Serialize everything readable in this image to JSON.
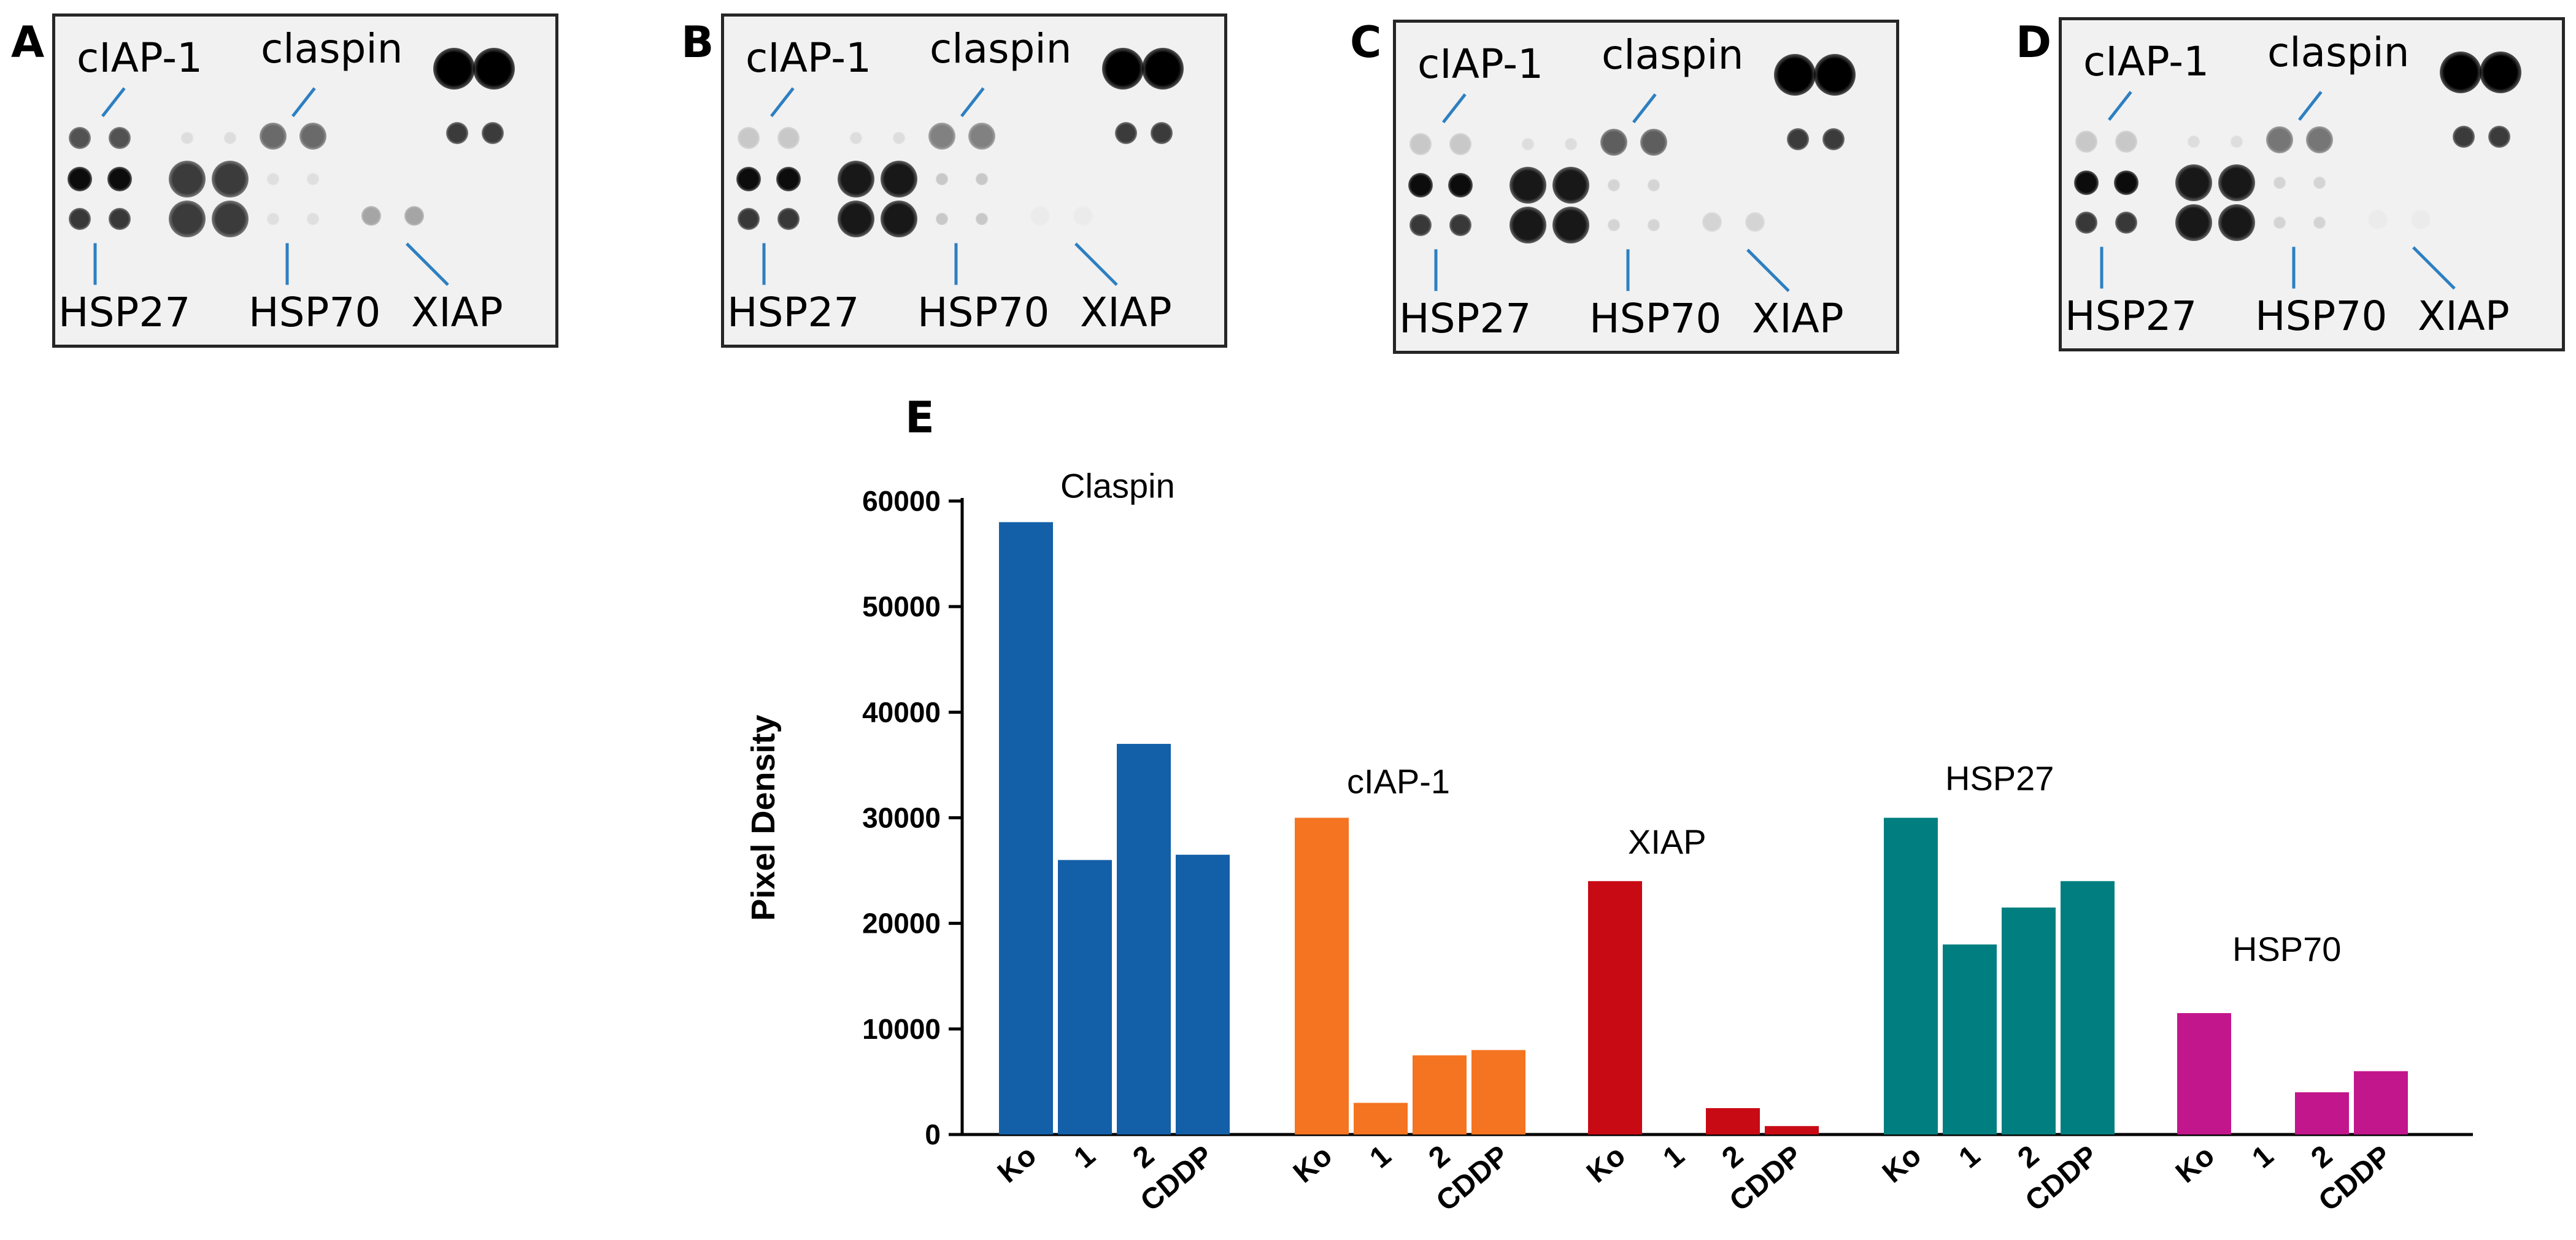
{
  "panels": [
    {
      "letter": "A",
      "labels": {
        "ciap1": "cIAP-1",
        "claspin": "claspin",
        "hsp27": "HSP27",
        "hsp70": "HSP70",
        "xiap": "XIAP"
      }
    },
    {
      "letter": "B",
      "labels": {
        "ciap1": "cIAP-1",
        "claspin": "claspin",
        "hsp27": "HSP27",
        "hsp70": "HSP70",
        "xiap": "XIAP"
      }
    },
    {
      "letter": "C",
      "labels": {
        "ciap1": "cIAP-1",
        "claspin": "claspin",
        "hsp27": "HSP27",
        "hsp70": "HSP70",
        "xiap": "XIAP"
      }
    },
    {
      "letter": "D",
      "labels": {
        "ciap1": "cIAP-1",
        "claspin": "claspin",
        "hsp27": "HSP27",
        "hsp70": "HSP70",
        "xiap": "XIAP"
      }
    }
  ],
  "chart_panel_letter": "E",
  "chart_data": {
    "type": "bar",
    "title": "",
    "xlabel": "",
    "ylabel": "Pixel Density",
    "ylim": [
      0,
      60000
    ],
    "yticks": [
      0,
      10000,
      20000,
      30000,
      40000,
      50000,
      60000
    ],
    "grid": false,
    "categories": [
      "Ko",
      "1",
      "2",
      "CDDP"
    ],
    "groups": [
      {
        "name": "Claspin",
        "color": "#1460a8",
        "values": [
          58000,
          26000,
          37000,
          26500
        ]
      },
      {
        "name": "cIAP-1",
        "color": "#f47421",
        "values": [
          30000,
          3000,
          7500,
          8000
        ]
      },
      {
        "name": "XIAP",
        "color": "#c80a14",
        "values": [
          24000,
          0,
          2500,
          800
        ]
      },
      {
        "name": "HSP27",
        "color": "#017f80",
        "values": [
          30000,
          18000,
          21500,
          24000
        ]
      },
      {
        "name": "HSP70",
        "color": "#c2168c",
        "values": [
          11500,
          0,
          4000,
          6000
        ]
      }
    ]
  }
}
